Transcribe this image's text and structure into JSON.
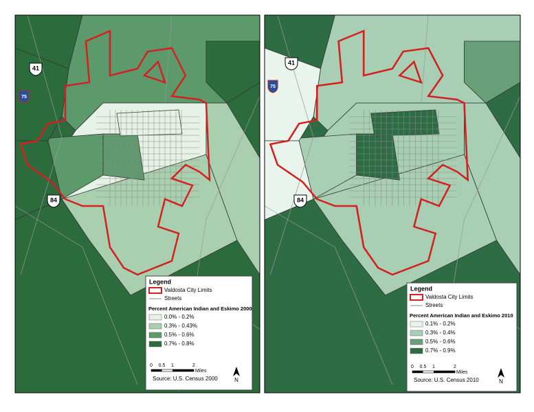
{
  "maps": [
    {
      "shields": {
        "us41": "41",
        "i75": "75",
        "us84": "84"
      },
      "legend": {
        "title": "Legend",
        "city_limits": "Valdosta City Limits",
        "streets": "Streets",
        "heading": "Percent American Indian and Eskimo 2000",
        "classes": [
          {
            "label": "0.0% - 0.2%",
            "color": "#e6f2e6"
          },
          {
            "label": "0.3% - 0.43%",
            "color": "#a9cfae"
          },
          {
            "label": "0.5% - 0.6%",
            "color": "#5d9a6b"
          },
          {
            "label": "0.7% - 0.8%",
            "color": "#2c6b3c"
          }
        ]
      },
      "scale": {
        "ticks": [
          "0",
          "0.5",
          "1",
          "2"
        ],
        "unit": "Miles"
      },
      "source": "Source: U.S. Census 2000",
      "north": "N"
    },
    {
      "shields": {
        "us41": "41",
        "i75": "75",
        "us84": "84"
      },
      "legend": {
        "title": "Legend",
        "city_limits": "Valdosta City Limits",
        "streets": "Streets",
        "heading": "Percent American Indian and Eskimo 2010",
        "classes": [
          {
            "label": "0.1% - 0.2%",
            "color": "#e9f4ec"
          },
          {
            "label": "0.3% - 0.4%",
            "color": "#a8cfb3"
          },
          {
            "label": "0.5% - 0.6%",
            "color": "#679f78"
          },
          {
            "label": "0.7% - 0.9%",
            "color": "#2e6d44"
          }
        ]
      },
      "scale": {
        "ticks": [
          "0",
          "0.5",
          "1",
          "2"
        ],
        "unit": "Miles"
      },
      "source": "Source: U.S. Census 2010",
      "north": "N"
    }
  ]
}
